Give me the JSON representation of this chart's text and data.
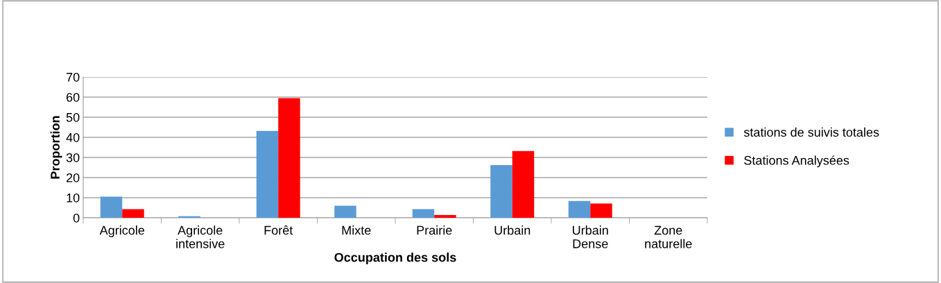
{
  "chart_data": {
    "type": "bar",
    "xlabel": "Occupation des sols",
    "ylabel": "Proportion",
    "categories": [
      "Agricole",
      "Agricole\nintensive",
      "Forêt",
      "Mixte",
      "Prairie",
      "Urbain",
      "Urbain\nDense",
      "Zone\nnaturelle"
    ],
    "series": [
      {
        "name": "stations de suivis totales",
        "color": "#5b9bd5",
        "values": [
          10.5,
          0.8,
          43.2,
          6.0,
          4.3,
          26.2,
          8.4,
          0
        ]
      },
      {
        "name": "Stations Analysées",
        "color": "#ff0000",
        "values": [
          4.3,
          0,
          59.5,
          0,
          1.4,
          33.2,
          7.1,
          0
        ]
      }
    ],
    "ylim": [
      0,
      70
    ],
    "yticks": [
      0,
      10,
      20,
      30,
      40,
      50,
      60,
      70
    ],
    "grid": "y",
    "legend": "right"
  }
}
